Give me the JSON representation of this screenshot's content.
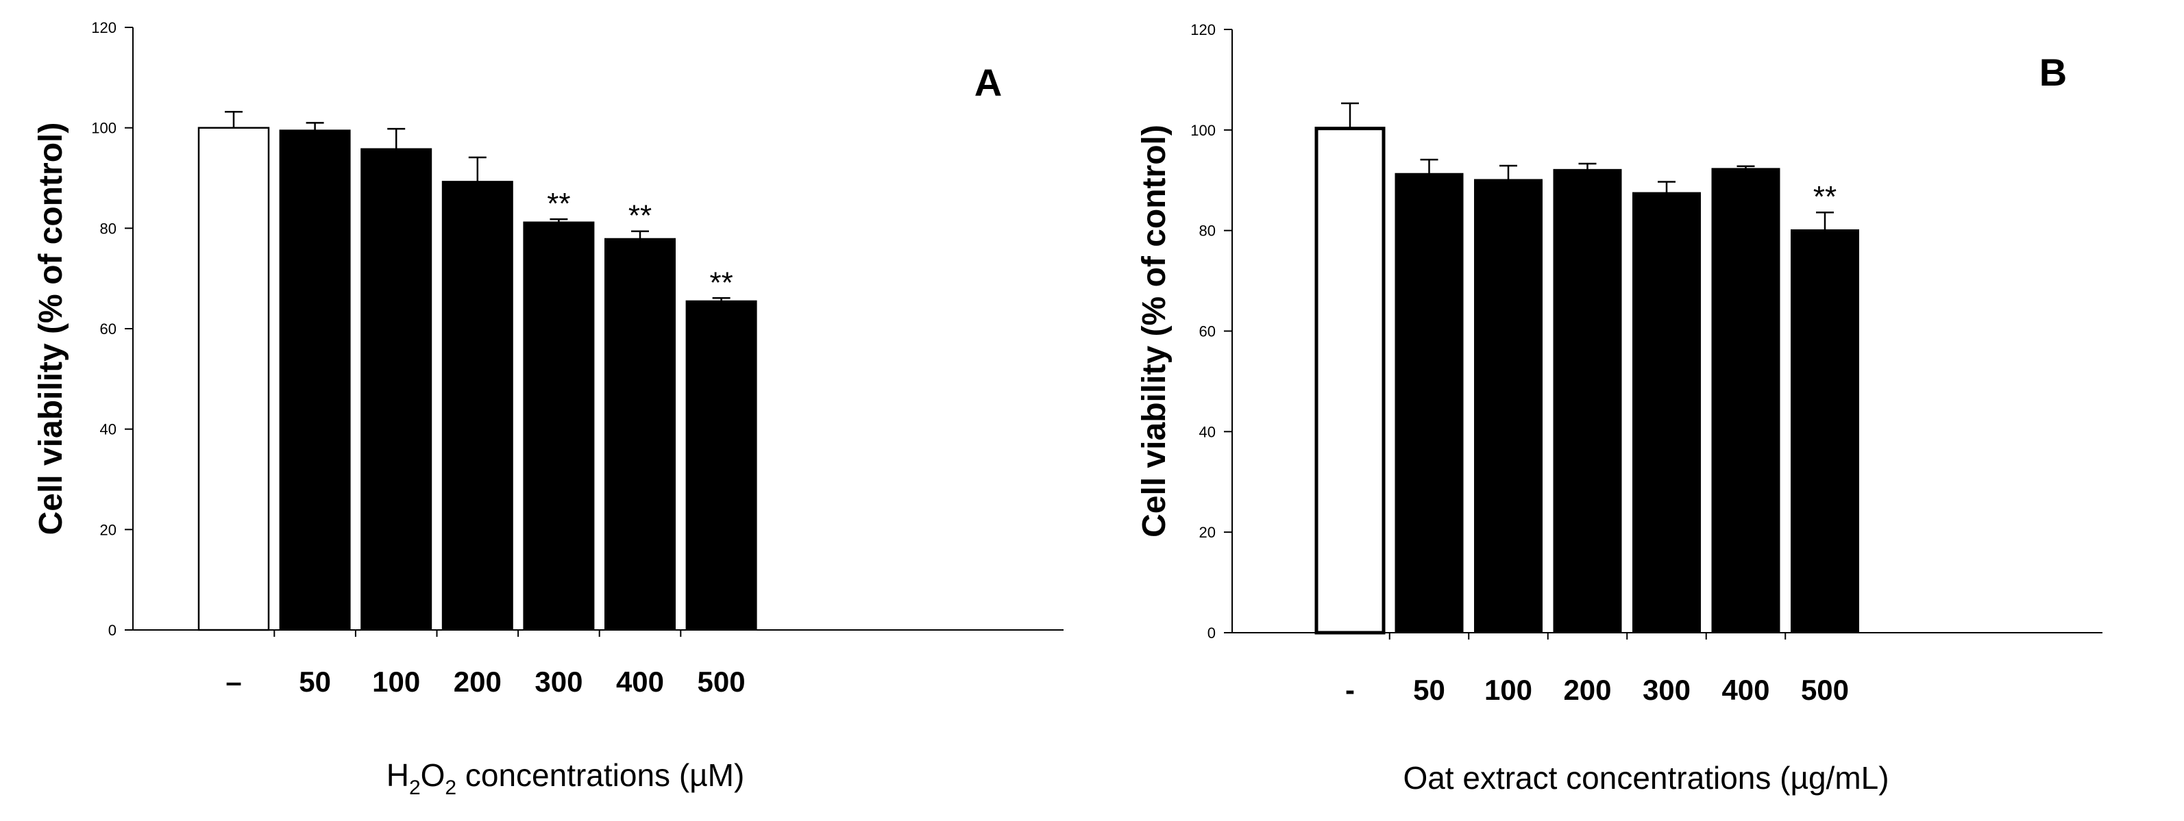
{
  "chart_data": [
    {
      "type": "bar",
      "panel_label": "A",
      "title": "",
      "ylabel": "Cell viability (% of control)",
      "xlabel_main": "H",
      "xlabel_sub1": "2",
      "xlabel_mid": "O",
      "xlabel_sub2": "2",
      "xlabel_rest": " concentrations (µM)",
      "ylim": [
        0,
        120
      ],
      "yticks": [
        0,
        20,
        40,
        60,
        80,
        100,
        120
      ],
      "categories": [
        "–",
        "50",
        "100",
        "200",
        "300",
        "400",
        "500"
      ],
      "values": [
        100,
        99.5,
        95.8,
        89.3,
        81.2,
        77.9,
        65.5
      ],
      "errors": [
        3.2,
        1.5,
        4.0,
        4.8,
        0.6,
        1.5,
        0.6
      ],
      "bar_fill": [
        "white",
        "black",
        "black",
        "black",
        "black",
        "black",
        "black"
      ],
      "annotations": [
        "",
        "",
        "",
        "",
        "**",
        "**",
        "**"
      ]
    },
    {
      "type": "bar",
      "panel_label": "B",
      "title": "",
      "ylabel": "Cell viability (% of control)",
      "xlabel_main": "Oat extract concentrations (µg/mL)",
      "ylim": [
        0,
        120
      ],
      "yticks": [
        0,
        20,
        40,
        60,
        80,
        100,
        120
      ],
      "categories": [
        "-",
        "50",
        "100",
        "200",
        "300",
        "400",
        "500"
      ],
      "values": [
        100.3,
        91.3,
        90.1,
        92.1,
        87.5,
        92.3,
        80.1
      ],
      "errors": [
        5.0,
        2.8,
        2.8,
        1.2,
        2.2,
        0.5,
        3.5
      ],
      "bar_fill": [
        "white",
        "black",
        "black",
        "black",
        "black",
        "black",
        "black"
      ],
      "annotations": [
        "",
        "",
        "",
        "",
        "",
        "",
        "**"
      ]
    }
  ]
}
